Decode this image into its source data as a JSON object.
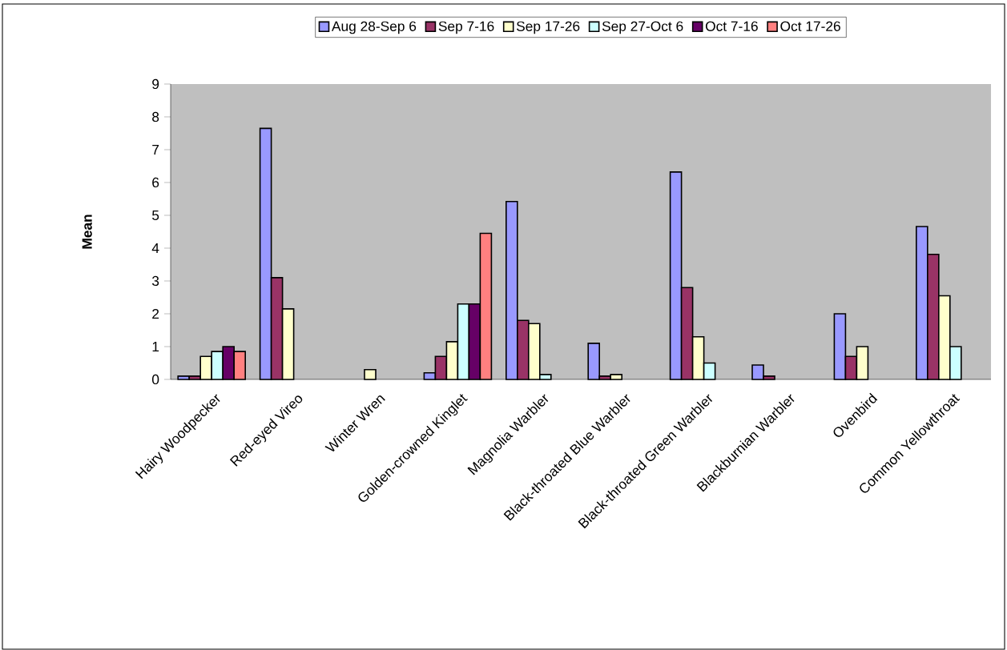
{
  "chart_data": {
    "type": "bar",
    "ylabel": "Mean",
    "categories": [
      "Hairy Woodpecker",
      "Red-eyed Vireo",
      "Winter Wren",
      "Golden-crowned Kinglet",
      "Magnolia Warbler",
      "Black-throated Blue Warbler",
      "Black-throated Green Warbler",
      "Blackburnian Warbler",
      "Ovenbird",
      "Common Yellowthroat"
    ],
    "series": [
      {
        "name": "Aug 28-Sep 6",
        "color": "#9999ff",
        "values": [
          0.1,
          7.65,
          null,
          0.2,
          5.42,
          1.1,
          6.32,
          0.44,
          2.0,
          4.66
        ]
      },
      {
        "name": "Sep 7-16",
        "color": "#993366",
        "values": [
          0.1,
          3.1,
          null,
          0.7,
          1.8,
          0.1,
          2.8,
          0.1,
          0.7,
          3.81
        ]
      },
      {
        "name": "Sep 17-26",
        "color": "#ffffcc",
        "values": [
          0.7,
          2.15,
          0.3,
          1.15,
          1.7,
          0.15,
          1.3,
          null,
          1.0,
          2.55
        ]
      },
      {
        "name": "Sep 27-Oct 6",
        "color": "#ccffff",
        "values": [
          0.85,
          null,
          null,
          2.3,
          0.15,
          null,
          0.5,
          null,
          null,
          1.0
        ]
      },
      {
        "name": "Oct 7-16",
        "color": "#660066",
        "values": [
          1.0,
          null,
          null,
          2.3,
          null,
          null,
          null,
          null,
          null,
          null
        ]
      },
      {
        "name": "Oct 17-26",
        "color": "#ff8080",
        "values": [
          0.85,
          null,
          null,
          4.45,
          null,
          null,
          null,
          null,
          null,
          null
        ]
      }
    ],
    "ylim": [
      0,
      9
    ],
    "yticks": [
      0,
      1,
      2,
      3,
      4,
      5,
      6,
      7,
      8,
      9
    ],
    "grid": false,
    "legend": "top"
  }
}
